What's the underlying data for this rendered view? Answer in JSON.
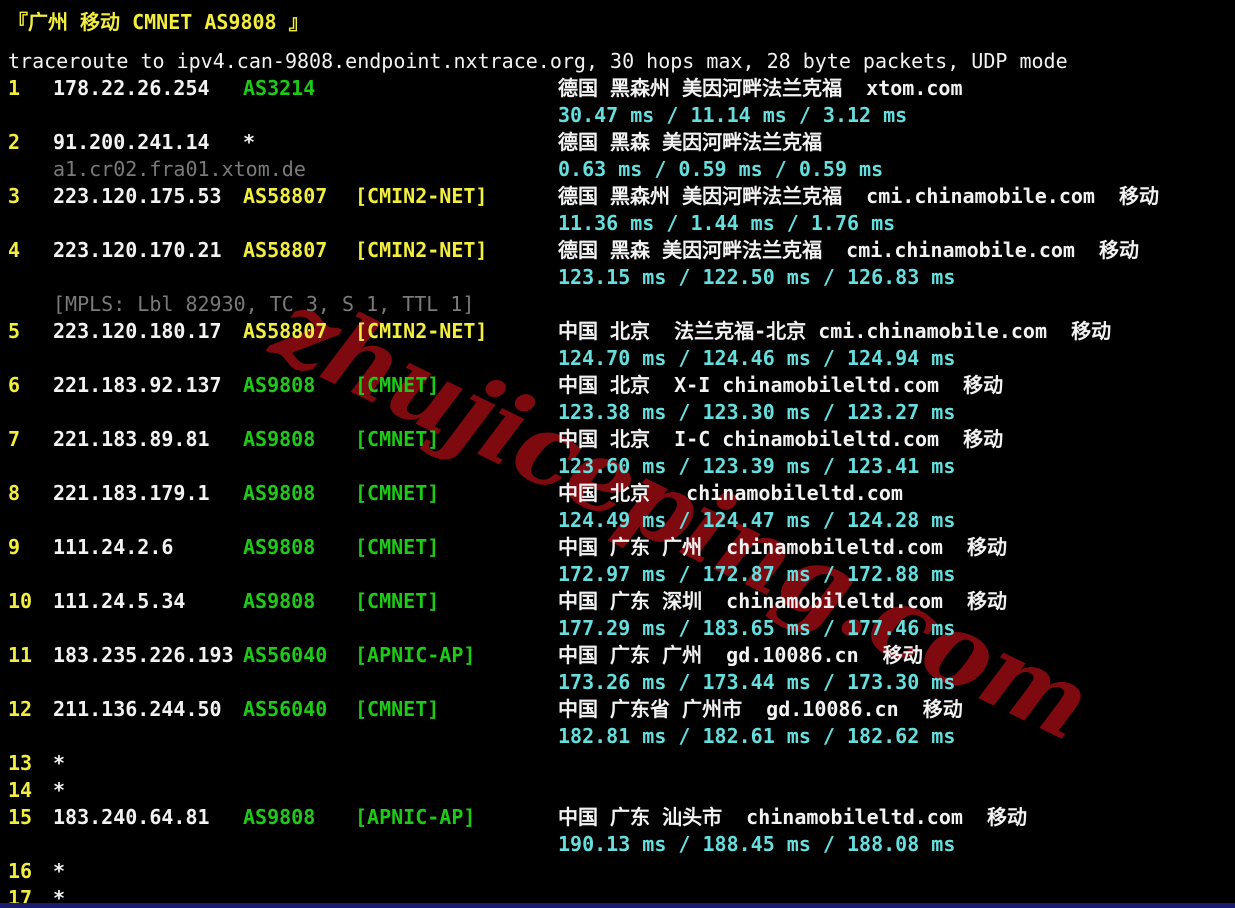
{
  "palette": {
    "background": "#000000",
    "yellow": "#f2ee3f",
    "green": "#1ec918",
    "cyan": "#67dede",
    "white": "#f2f2f2",
    "gray": "#7a7a7a",
    "watermark_red": "#850a10",
    "bottom_bar_blue": "#1a1a6e"
  },
  "watermark": "zhujiceping.com",
  "terminal": {
    "title": "『广州 移动 CMNET AS9808 』",
    "command": "traceroute to ipv4.can-9808.endpoint.nxtrace.org, 30 hops max, 28 byte packets, UDP mode",
    "hops": [
      {
        "num": "1",
        "ip": "178.22.26.254",
        "asn": "AS3214",
        "asn_color": "green",
        "tag": "",
        "geo": "德国 黑森州 美因河畔法兰克福  xtom.com",
        "latency": "30.47 ms / 11.14 ms / 3.12 ms"
      },
      {
        "num": "2",
        "ip": "91.200.241.14",
        "asn": "*",
        "asn_color": "white",
        "tag": "",
        "geo": "德国 黑森 美因河畔法兰克福",
        "hostname": "a1.cr02.fra01.xtom.de",
        "latency": "0.63 ms / 0.59 ms / 0.59 ms"
      },
      {
        "num": "3",
        "ip": "223.120.175.53",
        "asn": "AS58807",
        "asn_color": "yellow",
        "tag": "[CMIN2-NET]",
        "tag_color": "yellow",
        "geo": "德国 黑森州 美因河畔法兰克福  cmi.chinamobile.com  移动",
        "latency": "11.36 ms / 1.44 ms / 1.76 ms"
      },
      {
        "num": "4",
        "ip": "223.120.170.21",
        "asn": "AS58807",
        "asn_color": "yellow",
        "tag": "[CMIN2-NET]",
        "tag_color": "yellow",
        "geo": "德国 黑森 美因河畔法兰克福  cmi.chinamobile.com  移动",
        "latency": "123.15 ms / 122.50 ms / 126.83 ms",
        "mpls": "[MPLS: Lbl 82930, TC 3, S 1, TTL 1]"
      },
      {
        "num": "5",
        "ip": "223.120.180.17",
        "asn": "AS58807",
        "asn_color": "yellow",
        "tag": "[CMIN2-NET]",
        "tag_color": "yellow",
        "geo": "中国 北京  法兰克福-北京 cmi.chinamobile.com  移动",
        "latency": "124.70 ms / 124.46 ms / 124.94 ms"
      },
      {
        "num": "6",
        "ip": "221.183.92.137",
        "asn": "AS9808",
        "asn_color": "green",
        "tag": "[CMNET]",
        "tag_color": "green",
        "geo": "中国 北京  X-I chinamobileltd.com  移动",
        "latency": "123.38 ms / 123.30 ms / 123.27 ms"
      },
      {
        "num": "7",
        "ip": "221.183.89.81",
        "asn": "AS9808",
        "asn_color": "green",
        "tag": "[CMNET]",
        "tag_color": "green",
        "geo": "中国 北京  I-C chinamobileltd.com  移动",
        "latency": "123.60 ms / 123.39 ms / 123.41 ms"
      },
      {
        "num": "8",
        "ip": "221.183.179.1",
        "asn": "AS9808",
        "asn_color": "green",
        "tag": "[CMNET]",
        "tag_color": "green",
        "geo": "中国 北京   chinamobileltd.com",
        "latency": "124.49 ms / 124.47 ms / 124.28 ms"
      },
      {
        "num": "9",
        "ip": "111.24.2.6",
        "asn": "AS9808",
        "asn_color": "green",
        "tag": "[CMNET]",
        "tag_color": "green",
        "geo": "中国 广东 广州  chinamobileltd.com  移动",
        "latency": "172.97 ms / 172.87 ms / 172.88 ms"
      },
      {
        "num": "10",
        "ip": "111.24.5.34",
        "asn": "AS9808",
        "asn_color": "green",
        "tag": "[CMNET]",
        "tag_color": "green",
        "geo": "中国 广东 深圳  chinamobileltd.com  移动",
        "latency": "177.29 ms / 183.65 ms / 177.46 ms"
      },
      {
        "num": "11",
        "ip": "183.235.226.193",
        "asn": "AS56040",
        "asn_color": "green",
        "tag": "[APNIC-AP]",
        "tag_color": "green",
        "geo": "中国 广东 广州  gd.10086.cn  移动",
        "latency": "173.26 ms / 173.44 ms / 173.30 ms"
      },
      {
        "num": "12",
        "ip": "211.136.244.50",
        "asn": "AS56040",
        "asn_color": "green",
        "tag": "[CMNET]",
        "tag_color": "green",
        "geo": "中国 广东省 广州市  gd.10086.cn  移动",
        "latency": "182.81 ms / 182.61 ms / 182.62 ms"
      },
      {
        "num": "13",
        "star": "*"
      },
      {
        "num": "14",
        "star": "*"
      },
      {
        "num": "15",
        "ip": "183.240.64.81",
        "asn": "AS9808",
        "asn_color": "green",
        "tag": "[APNIC-AP]",
        "tag_color": "green",
        "geo": "中国 广东 汕头市  chinamobileltd.com  移动",
        "latency": "190.13 ms / 188.45 ms / 188.08 ms"
      },
      {
        "num": "16",
        "star": "*"
      },
      {
        "num": "17",
        "star": "*"
      }
    ]
  }
}
